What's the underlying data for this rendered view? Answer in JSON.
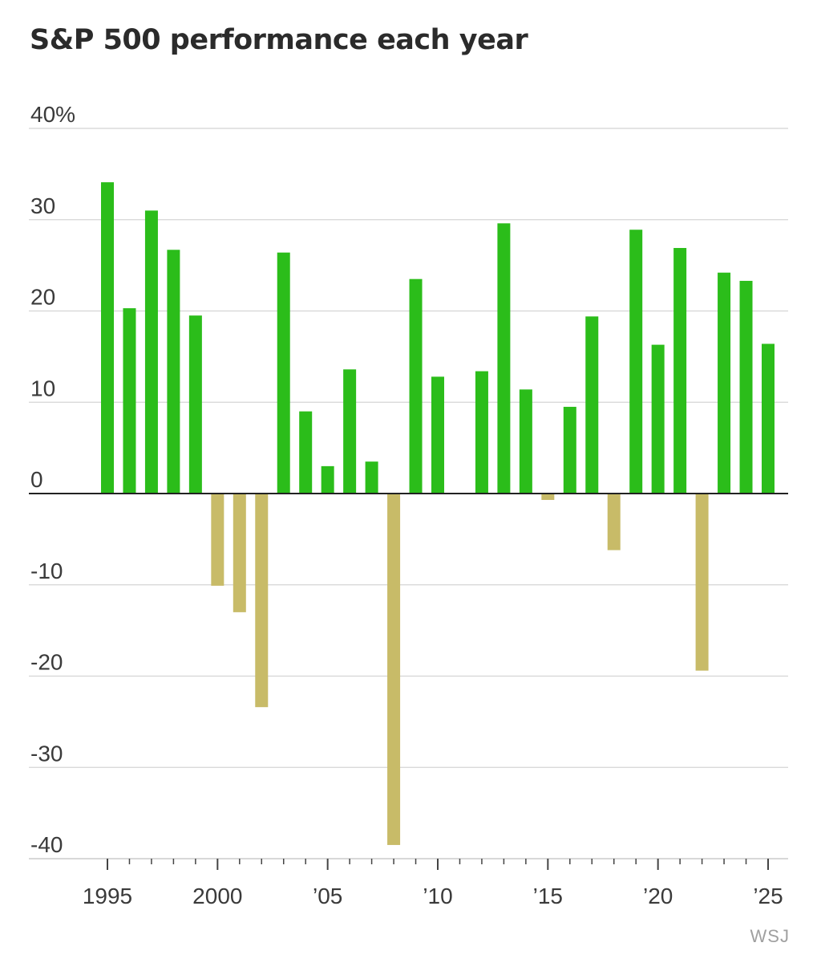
{
  "chart_data": {
    "type": "bar",
    "title": "S&P 500 performance each year",
    "source": "WSJ",
    "xlabel": "",
    "ylabel": "",
    "ylim": [
      -40,
      40
    ],
    "y_ticks": [
      40,
      30,
      20,
      10,
      0,
      -10,
      -20,
      -30,
      -40
    ],
    "y_tick_labels": [
      "40%",
      "30",
      "20",
      "10",
      "0",
      "-10",
      "-20",
      "-30",
      "-40"
    ],
    "x_ticks": [
      1995,
      2000,
      2005,
      2010,
      2015,
      2020,
      2025
    ],
    "x_tick_labels": [
      "1995",
      "2000",
      "’05",
      "’10",
      "’15",
      "’20",
      "’25"
    ],
    "grid": true,
    "colors": {
      "positive": "#2bbd1a",
      "negative": "#c8bb68",
      "grid": "#d4d4d4",
      "zero_line": "#222222"
    },
    "categories": [
      1995,
      1996,
      1997,
      1998,
      1999,
      2000,
      2001,
      2002,
      2003,
      2004,
      2005,
      2006,
      2007,
      2008,
      2009,
      2010,
      2011,
      2012,
      2013,
      2014,
      2015,
      2016,
      2017,
      2018,
      2019,
      2020,
      2021,
      2022,
      2023,
      2024,
      2025
    ],
    "values": [
      34.1,
      20.3,
      31.0,
      26.7,
      19.5,
      -10.1,
      -13.0,
      -23.4,
      26.4,
      9.0,
      3.0,
      13.6,
      3.5,
      -38.5,
      23.5,
      12.8,
      0.0,
      13.4,
      29.6,
      11.4,
      -0.7,
      9.5,
      19.4,
      -6.2,
      28.9,
      16.3,
      26.9,
      -19.4,
      24.2,
      23.3,
      16.4
    ]
  }
}
